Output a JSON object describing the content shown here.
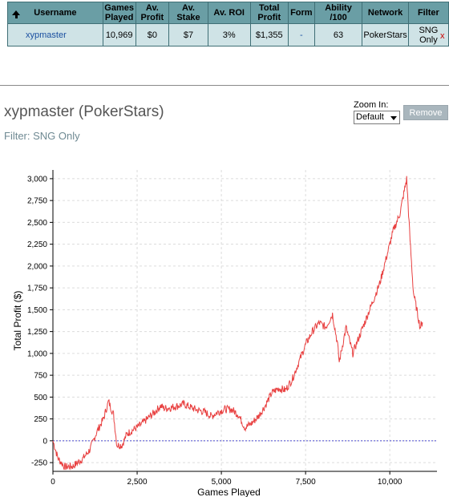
{
  "table": {
    "headers": [
      {
        "label": "Username",
        "sort_icon": "arrow-up-icon"
      },
      {
        "label": "Games Played"
      },
      {
        "label": "Av. Profit"
      },
      {
        "label": "Av. Stake"
      },
      {
        "label": "Av. ROI"
      },
      {
        "label": "Total Profit"
      },
      {
        "label": "Form"
      },
      {
        "label": "Ability /100"
      },
      {
        "label": "Network"
      },
      {
        "label": "Filter"
      }
    ],
    "row": {
      "username": "xypmaster",
      "games_played": "10,969",
      "av_profit": "$0",
      "av_stake": "$7",
      "av_roi": "3%",
      "total_profit": "$1,355",
      "form": "-",
      "ability": "63",
      "network": "PokerStars",
      "filter": "SNG Only",
      "remove_x": "x"
    }
  },
  "chart_panel": {
    "title": "xypmaster (PokerStars)",
    "filter_text": "Filter: SNG Only",
    "zoom_label": "Zoom In:",
    "zoom_value": "Default",
    "remove_label": "Remove"
  },
  "chart_data": {
    "type": "line",
    "xlabel": "Games Played",
    "ylabel": "Total Profit ($)",
    "xlim": [
      0,
      11400
    ],
    "ylim": [
      -350,
      3100
    ],
    "x_ticks": [
      0,
      2500,
      5000,
      7500,
      10000
    ],
    "x_tick_labels": [
      "0",
      "2,500",
      "5,000",
      "7,500",
      "10,000"
    ],
    "y_ticks": [
      -250,
      0,
      250,
      500,
      750,
      1000,
      1250,
      1500,
      1750,
      2000,
      2250,
      2500,
      2750,
      3000
    ],
    "y_tick_labels": [
      "-250",
      "0",
      "250",
      "500",
      "750",
      "1,000",
      "1,250",
      "1,500",
      "1,750",
      "2,000",
      "2,250",
      "2,500",
      "2,750",
      "3,000"
    ],
    "grid": true,
    "line_color": "#e84040",
    "zero_line_color": "#4a4ad0",
    "series": [
      {
        "x": [
          0,
          150,
          350,
          600,
          900,
          1100,
          1300,
          1500,
          1650,
          1800,
          1900,
          2050,
          2200,
          2400,
          2600,
          2800,
          3000,
          3200,
          3300,
          3500,
          3700,
          3900,
          4100,
          4300,
          4500,
          4700,
          4900,
          5100,
          5300,
          5500,
          5700,
          5900,
          6100,
          6300,
          6500,
          6700,
          6900,
          7100,
          7300,
          7500,
          7700,
          7900,
          8100,
          8300,
          8450,
          8500,
          8700,
          8900,
          9100,
          9300,
          9500,
          9700,
          9900,
          10100,
          10300,
          10400,
          10500,
          10600,
          10700,
          10800,
          10900,
          10969
        ],
        "y": [
          0,
          -200,
          -300,
          -290,
          -200,
          -100,
          100,
          250,
          450,
          300,
          -50,
          -50,
          80,
          130,
          180,
          250,
          320,
          400,
          370,
          380,
          400,
          420,
          380,
          350,
          330,
          280,
          330,
          360,
          360,
          300,
          150,
          200,
          280,
          400,
          550,
          600,
          580,
          700,
          900,
          1100,
          1250,
          1350,
          1300,
          1450,
          1100,
          900,
          1300,
          1000,
          1200,
          1400,
          1600,
          1800,
          2100,
          2400,
          2600,
          2800,
          3000,
          2300,
          1700,
          1500,
          1300,
          1355
        ]
      }
    ]
  }
}
